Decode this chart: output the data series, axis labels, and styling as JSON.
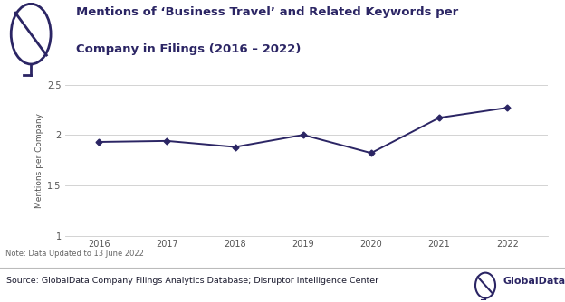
{
  "title_line1": "Mentions of ‘Business Travel’ and Related Keywords per",
  "title_line2": "Company in Filings (2016 – 2022)",
  "years": [
    2016,
    2017,
    2018,
    2019,
    2020,
    2021,
    2022
  ],
  "values": [
    1.93,
    1.94,
    1.88,
    2.0,
    1.82,
    2.17,
    2.27
  ],
  "ylabel": "Mentions per Company",
  "ylim": [
    1.0,
    2.5
  ],
  "yticks": [
    1.0,
    1.5,
    2.0,
    2.5
  ],
  "ytick_labels": [
    "1",
    "1.5",
    "2",
    "2.5"
  ],
  "line_color": "#2b2564",
  "marker": "D",
  "marker_size": 3.5,
  "note": "Note: Data Updated to 13 June 2022",
  "source": "Source: GlobalData Company Filings Analytics Database; Disruptor Intelligence Center",
  "background_color": "#ffffff",
  "grid_color": "#cccccc",
  "title_color": "#2b2564",
  "axis_label_color": "#555555",
  "tick_label_color": "#555555"
}
